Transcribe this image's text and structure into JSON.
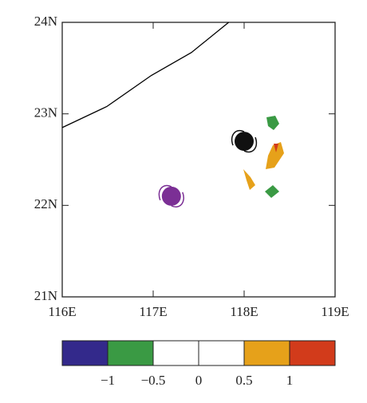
{
  "chart_data": {
    "type": "map",
    "xlim": [
      116,
      119
    ],
    "ylim": [
      21,
      24
    ],
    "xticks": [
      {
        "value": 116,
        "label": "116E"
      },
      {
        "value": 117,
        "label": "117E"
      },
      {
        "value": 118,
        "label": "118E"
      },
      {
        "value": 119,
        "label": "119E"
      }
    ],
    "yticks": [
      {
        "value": 21,
        "label": "21N"
      },
      {
        "value": 22,
        "label": "22N"
      },
      {
        "value": 23,
        "label": "23N"
      },
      {
        "value": 24,
        "label": "24N"
      }
    ],
    "coastline": {
      "lon": [
        116,
        116.49,
        116.98,
        117.42,
        117.83
      ],
      "lat": [
        22.85,
        23.08,
        23.42,
        23.67,
        24.0
      ],
      "color": "#000000"
    },
    "storms": [
      {
        "lon": 118.0,
        "lat": 22.7,
        "color": "#111111"
      },
      {
        "lon": 117.2,
        "lat": 22.1,
        "color": "#7b2f95"
      }
    ],
    "colorbar": {
      "lim": [
        -1.5,
        1.5
      ],
      "colors": [
        "#33298b",
        "#3a9a44",
        "#ffffff",
        "#ffffff",
        "#e6a11a",
        "#d23b1b"
      ],
      "ticks": [
        {
          "value": -1,
          "label": "−1"
        },
        {
          "value": -0.5,
          "label": "−0.5"
        },
        0,
        0.5,
        1
      ]
    }
  }
}
